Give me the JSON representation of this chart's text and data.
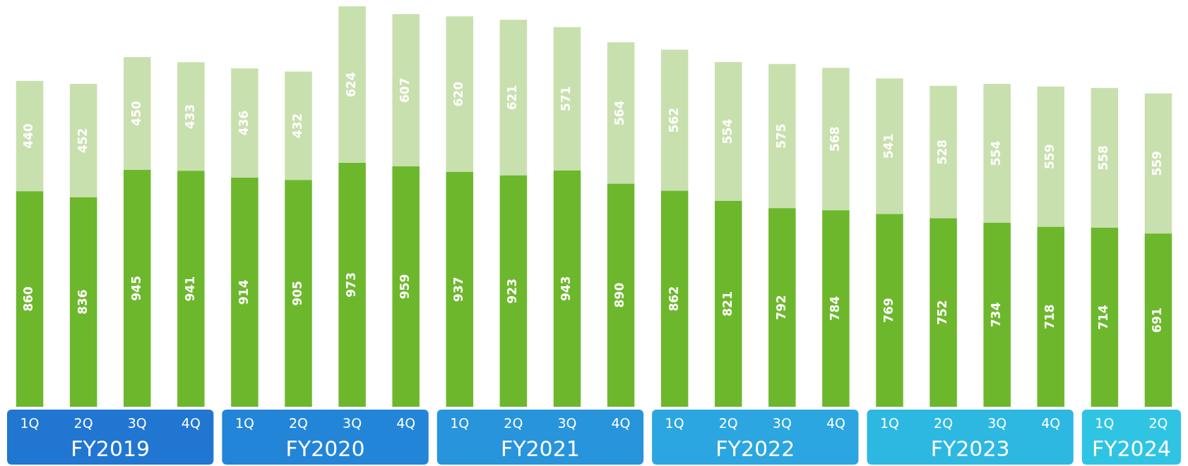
{
  "chart_data": {
    "type": "bar",
    "stacked": true,
    "data_labels": true,
    "legend": false,
    "grid": false,
    "categories": [
      "1Q",
      "2Q",
      "3Q",
      "4Q",
      "1Q",
      "2Q",
      "3Q",
      "4Q",
      "1Q",
      "2Q",
      "3Q",
      "4Q",
      "1Q",
      "2Q",
      "3Q",
      "4Q",
      "1Q",
      "2Q",
      "3Q",
      "4Q",
      "1Q",
      "2Q"
    ],
    "series": [
      {
        "color": "#6db72d",
        "values": [
          860,
          836,
          945,
          941,
          914,
          905,
          973,
          959,
          937,
          923,
          943,
          890,
          862,
          821,
          792,
          784,
          769,
          752,
          734,
          718,
          714,
          691
        ]
      },
      {
        "color": "#c8e0ae",
        "values": [
          440,
          452,
          450,
          433,
          436,
          432,
          624,
          607,
          620,
          621,
          571,
          564,
          562,
          554,
          575,
          568,
          541,
          528,
          554,
          559,
          558,
          559
        ]
      }
    ],
    "annotations": [
      "FY2019",
      "FY2020",
      "FY2021",
      "FY2022",
      "FY2023",
      "FY2024"
    ]
  }
}
